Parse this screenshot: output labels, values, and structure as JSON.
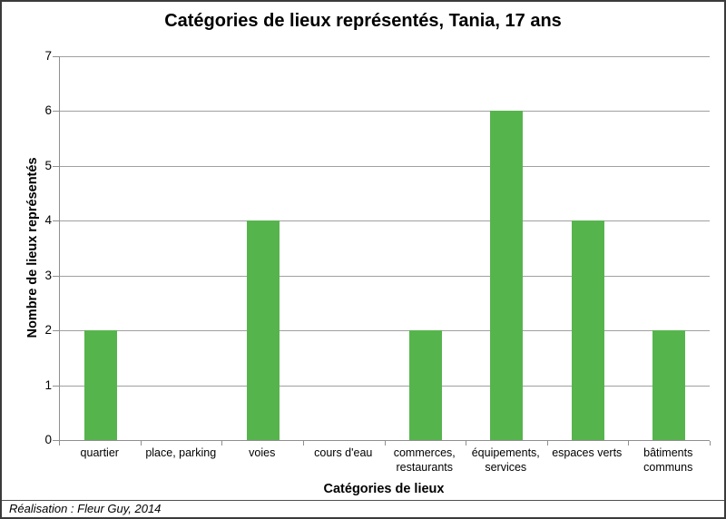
{
  "page": {
    "footer": "Réalisation : Fleur Guy, 2014"
  },
  "colors": {
    "bar": "#56b44d",
    "gridline": "#a0a0a0",
    "axis": "#8f8f8f",
    "frame": "#3b3b3b",
    "divider": "#4f4f4f",
    "text": "#000000",
    "background": "#ffffff"
  },
  "chart_data": {
    "type": "bar",
    "title": "Catégories de lieux représentés, Tania, 17 ans",
    "categories": [
      "quartier",
      "place, parking",
      "voies",
      "cours d'eau",
      "commerces, restaurants",
      "équipements, services",
      "espaces verts",
      "bâtiments communs"
    ],
    "values": [
      2,
      0,
      4,
      0,
      2,
      6,
      4,
      2
    ],
    "xlabel": "Catégories de lieux",
    "ylabel": "Nombre de lieux représentés",
    "ylim": [
      0,
      7
    ],
    "yticks": [
      0,
      1,
      2,
      3,
      4,
      5,
      6,
      7
    ],
    "grid": true,
    "legend": false,
    "bar_color": "#56b44d"
  }
}
